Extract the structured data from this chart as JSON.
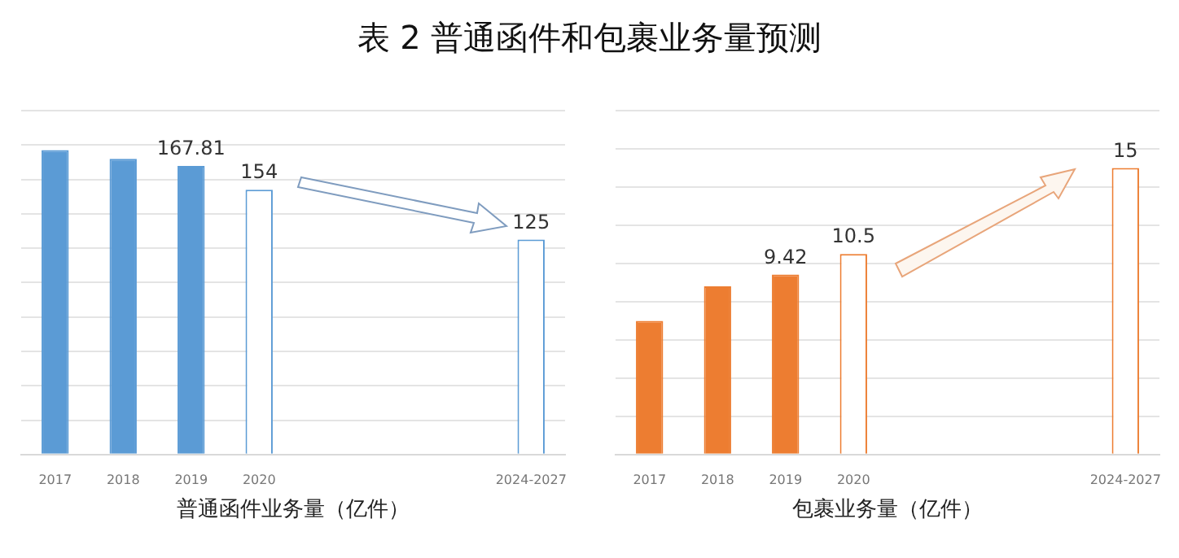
{
  "chart_data": [
    {
      "type": "bar",
      "title": "表 2  普通函件和包裹业务量预测",
      "xlabel": "普通函件业务量（亿件）",
      "categories": [
        "2017",
        "2018",
        "2019",
        "2020",
        null,
        null,
        null,
        "2024-2027"
      ],
      "values": [
        177,
        172,
        167.81,
        154,
        null,
        null,
        null,
        125
      ],
      "value_labels": [
        null,
        null,
        "167.81",
        "154",
        null,
        null,
        null,
        "125"
      ],
      "color": "#5b9bd5",
      "colors": [
        "#5b9bd5",
        "#5b9bd5",
        "#5b9bd5",
        "#ffffff",
        null,
        null,
        null,
        "#ffffff"
      ],
      "ylim": [
        0,
        200
      ],
      "yticks": [
        {
          "value": 0,
          "label": null
        },
        {
          "value": 20,
          "label": null
        },
        {
          "value": 40,
          "label": null
        },
        {
          "value": 60,
          "label": null
        },
        {
          "value": 80,
          "label": null
        },
        {
          "value": 100,
          "label": null
        },
        {
          "value": 120,
          "label": null
        },
        {
          "value": 140,
          "label": null
        },
        {
          "value": 160,
          "label": null
        },
        {
          "value": 180,
          "label": null
        },
        {
          "value": 200,
          "label": null
        }
      ],
      "grid": "y",
      "tick_labels": "x",
      "legend": false
    },
    {
      "type": "bar",
      "xlabel": "包裹业务量（亿件）",
      "categories": [
        "2017",
        "2018",
        "2019",
        "2020",
        null,
        null,
        null,
        "2024-2027"
      ],
      "values": [
        7,
        8.8,
        9.42,
        10.5,
        null,
        null,
        null,
        15
      ],
      "value_labels": [
        null,
        null,
        "9.42",
        "10.5",
        null,
        null,
        null,
        "15"
      ],
      "color": "#ed7d31",
      "colors": [
        "#ed7d31",
        "#ed7d31",
        "#ed7d31",
        "#ffffff",
        null,
        null,
        null,
        "#ffffff"
      ],
      "ylim": [
        0,
        18
      ],
      "yticks": [
        {
          "value": 0,
          "label": null
        },
        {
          "value": 2,
          "label": null
        },
        {
          "value": 4,
          "label": null
        },
        {
          "value": 6,
          "label": null
        },
        {
          "value": 8,
          "label": null
        },
        {
          "value": 10,
          "label": null
        },
        {
          "value": 12,
          "label": null
        },
        {
          "value": 14,
          "label": null
        },
        {
          "value": 16,
          "label": null
        },
        {
          "value": 18,
          "label": null
        }
      ],
      "grid": "y",
      "tick_labels": "x",
      "legend": false
    }
  ]
}
